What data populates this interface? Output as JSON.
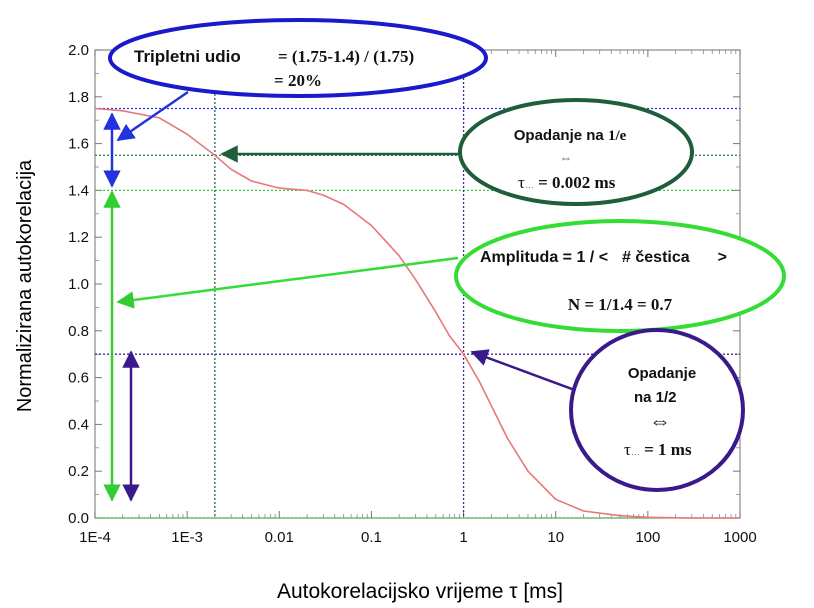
{
  "chart_data": {
    "type": "line",
    "xlabel": "Autokorelacijsko vrijeme τ [ms]",
    "ylabel": "Normalizirana autokorelacija",
    "x_scale": "log",
    "xlim": [
      0.0001,
      1000
    ],
    "ylim": [
      0.0,
      2.0
    ],
    "x_tick_labels": [
      "1E-4",
      "1E-3",
      "0.01",
      "0.1",
      "1",
      "10",
      "100",
      "1000"
    ],
    "y_tick_labels": [
      "0.0",
      "0.2",
      "0.4",
      "0.6",
      "0.8",
      "1.0",
      "1.2",
      "1.4",
      "1.6",
      "1.8",
      "2.0"
    ],
    "grid": false,
    "series": [
      {
        "color": "#e8767a",
        "x": [
          0.0001,
          0.0002,
          0.0005,
          0.001,
          0.002,
          0.003,
          0.005,
          0.01,
          0.02,
          0.03,
          0.05,
          0.1,
          0.2,
          0.3,
          0.5,
          0.7,
          1,
          1.5,
          2,
          3,
          5,
          10,
          20,
          50,
          100,
          300,
          1000
        ],
        "y": [
          1.75,
          1.74,
          1.71,
          1.64,
          1.55,
          1.49,
          1.44,
          1.41,
          1.4,
          1.38,
          1.34,
          1.25,
          1.12,
          1.02,
          0.88,
          0.78,
          0.7,
          0.58,
          0.48,
          0.34,
          0.2,
          0.08,
          0.03,
          0.01,
          0.003,
          0.0,
          0.0
        ]
      }
    ],
    "reference_lines": [
      {
        "axis": "y",
        "value": 1.75,
        "color": "#2233dd"
      },
      {
        "axis": "y",
        "value": 1.55,
        "color": "#2a8a5a"
      },
      {
        "axis": "y",
        "value": 1.4,
        "color": "#33cc33"
      },
      {
        "axis": "y",
        "value": 0.7,
        "color": "#3a2a9a"
      },
      {
        "axis": "y",
        "value": 0.0,
        "color": "#33cc33"
      },
      {
        "axis": "x",
        "value": 0.002,
        "color": "#2a6a4a"
      },
      {
        "axis": "x",
        "value": 1,
        "color": "#3a2a9a"
      }
    ]
  },
  "annotations": {
    "triplet": {
      "label": "Tripletni udio",
      "formula": "= (1.75-1.4) / (1.75)",
      "result": "= 20%",
      "color": "#1a1acc"
    },
    "decay_e": {
      "title_prefix": "Opadanje na",
      "title_value": "1/e",
      "arrow_symbol": "⇔",
      "tau_symbol": "τ",
      "tau_sub": "…",
      "tau_value": "= 0.002 ms",
      "color": "#1e5e3a"
    },
    "amplitude": {
      "line1_left": "Amplituda = 1 / <",
      "line1_mid": "# čestica",
      "line1_right": ">",
      "line2": "N = 1/1.4 = 0.7",
      "color": "#33dd33"
    },
    "decay_half": {
      "line1": "Opadanje",
      "line2": "na 1/2",
      "arrow_symbol": "⇔",
      "tau_symbol": "τ",
      "tau_sub": "…",
      "tau_value": "= 1 ms",
      "color": "#3a1a8a"
    }
  },
  "colors": {
    "curve": "#e8767a",
    "blue": "#2233dd",
    "dark_green": "#1e5e3a",
    "green": "#33cc33",
    "purple": "#3a2a9a"
  }
}
